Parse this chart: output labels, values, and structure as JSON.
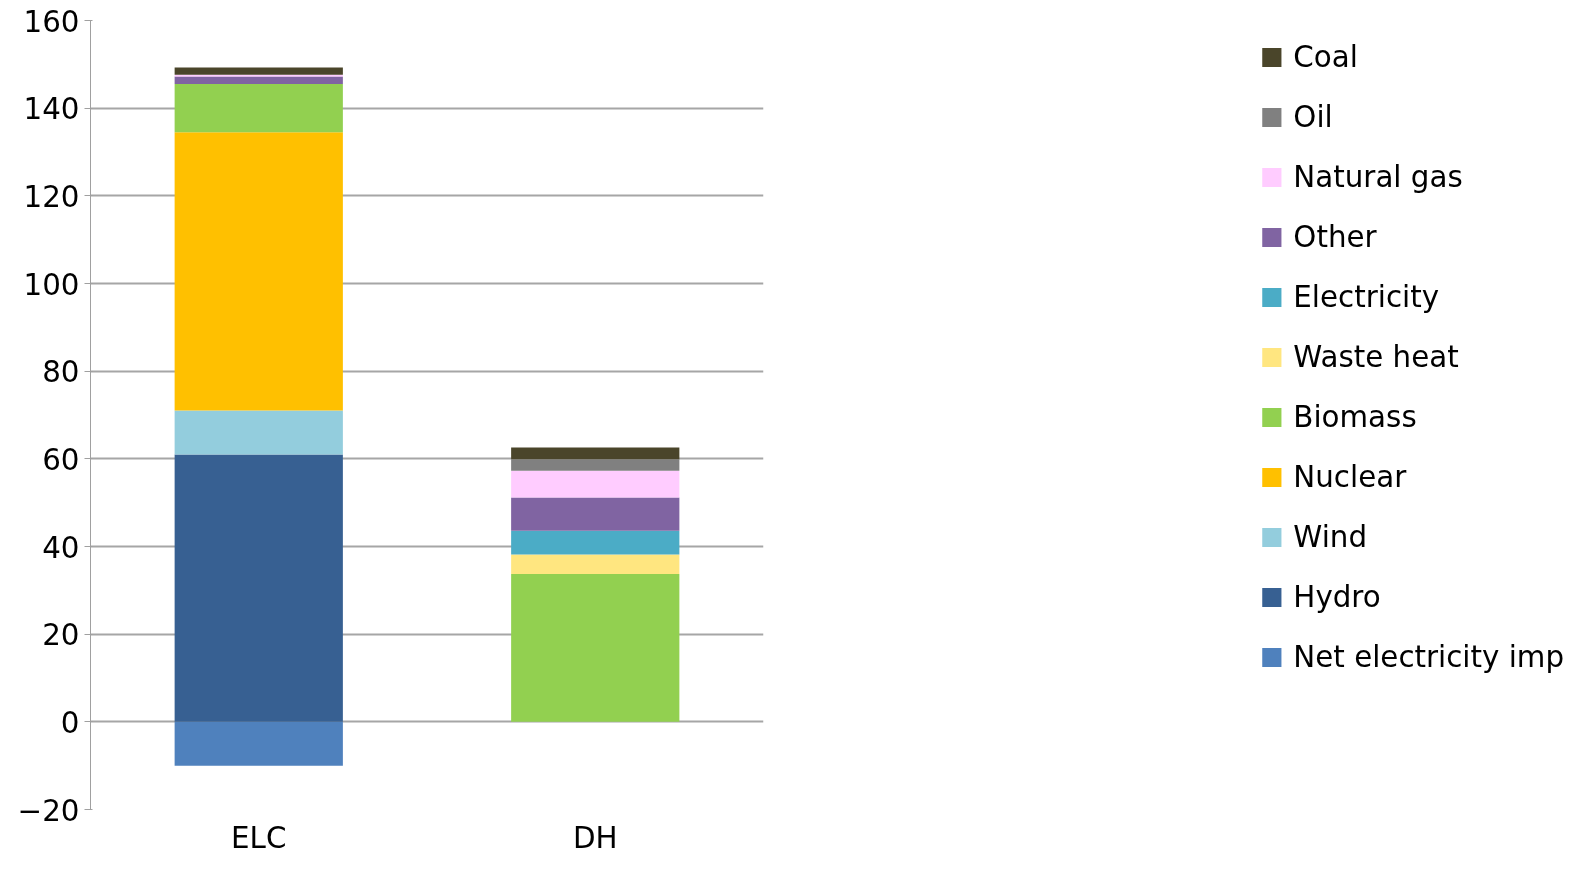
{
  "chart_data": {
    "type": "bar",
    "stacked": true,
    "categories": [
      "ELC",
      "DH"
    ],
    "series": [
      {
        "name": "Net electricity imp",
        "color": "#4f81bd",
        "values": [
          -10,
          0
        ]
      },
      {
        "name": "Hydro",
        "color": "#376092",
        "values": [
          61,
          0
        ]
      },
      {
        "name": "Wind",
        "color": "#93cddd",
        "values": [
          10,
          0
        ]
      },
      {
        "name": "Nuclear",
        "color": "#ffc000",
        "values": [
          63.5,
          0
        ]
      },
      {
        "name": "Biomass",
        "color": "#92d050",
        "values": [
          11,
          33.7
        ]
      },
      {
        "name": "Waste heat",
        "color": "#ffe680",
        "values": [
          0,
          4.5
        ]
      },
      {
        "name": "Electricity",
        "color": "#4bacc6",
        "values": [
          0,
          5.4
        ]
      },
      {
        "name": "Other",
        "color": "#8064a2",
        "values": [
          1.7,
          7.6
        ]
      },
      {
        "name": "Natural gas",
        "color": "#ffccff",
        "values": [
          0.4,
          6.1
        ]
      },
      {
        "name": "Oil",
        "color": "#808080",
        "values": [
          0,
          2.6
        ]
      },
      {
        "name": "Coal",
        "color": "#4a452a",
        "values": [
          1.7,
          2.7
        ]
      }
    ],
    "ylim": [
      -20,
      160
    ],
    "yticks": [
      -20,
      0,
      20,
      40,
      60,
      80,
      100,
      120,
      140,
      160
    ],
    "grid": "y",
    "legend": "right"
  }
}
